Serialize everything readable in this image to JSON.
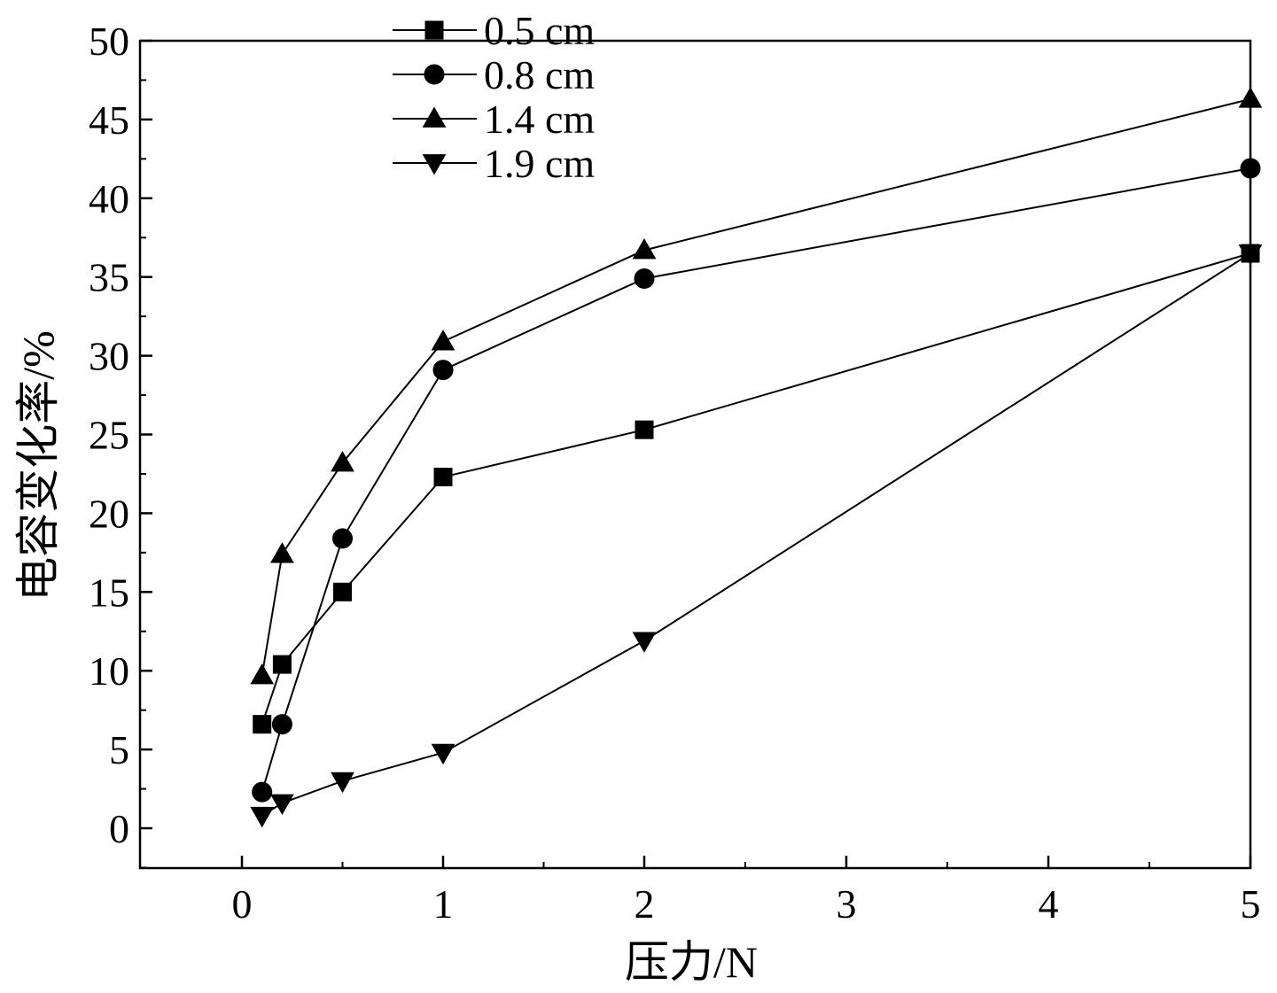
{
  "chart_data": {
    "type": "line",
    "title": "",
    "xlabel": "压力/N",
    "ylabel": "电容变化率/%",
    "x_ticks": [
      0,
      1,
      2,
      3,
      4,
      5
    ],
    "y_ticks": [
      0,
      5,
      10,
      15,
      20,
      25,
      30,
      35,
      40,
      45,
      50
    ],
    "ylim": [
      -2.5,
      50
    ],
    "grid": false,
    "legend_position": "top-center",
    "series": [
      {
        "name": "0.5 cm",
        "marker": "square",
        "x": [
          0.1,
          0.2,
          0.5,
          1,
          2,
          5
        ],
        "y": [
          6.6,
          10.4,
          15.0,
          22.3,
          25.3,
          36.5
        ]
      },
      {
        "name": "0.8 cm",
        "marker": "circle",
        "x": [
          0.1,
          0.2,
          0.5,
          1,
          2,
          5
        ],
        "y": [
          2.3,
          6.6,
          18.4,
          29.1,
          34.9,
          41.9
        ]
      },
      {
        "name": "1.4 cm",
        "marker": "triangle-up",
        "x": [
          0.1,
          0.2,
          0.5,
          1,
          2,
          5
        ],
        "y": [
          9.7,
          17.4,
          23.2,
          30.9,
          36.7,
          46.3
        ]
      },
      {
        "name": "1.9 cm",
        "marker": "triangle-down",
        "x": [
          0.1,
          0.2,
          0.5,
          1,
          2,
          5
        ],
        "y": [
          0.8,
          1.6,
          3.0,
          4.8,
          11.9,
          36.5
        ]
      }
    ]
  }
}
